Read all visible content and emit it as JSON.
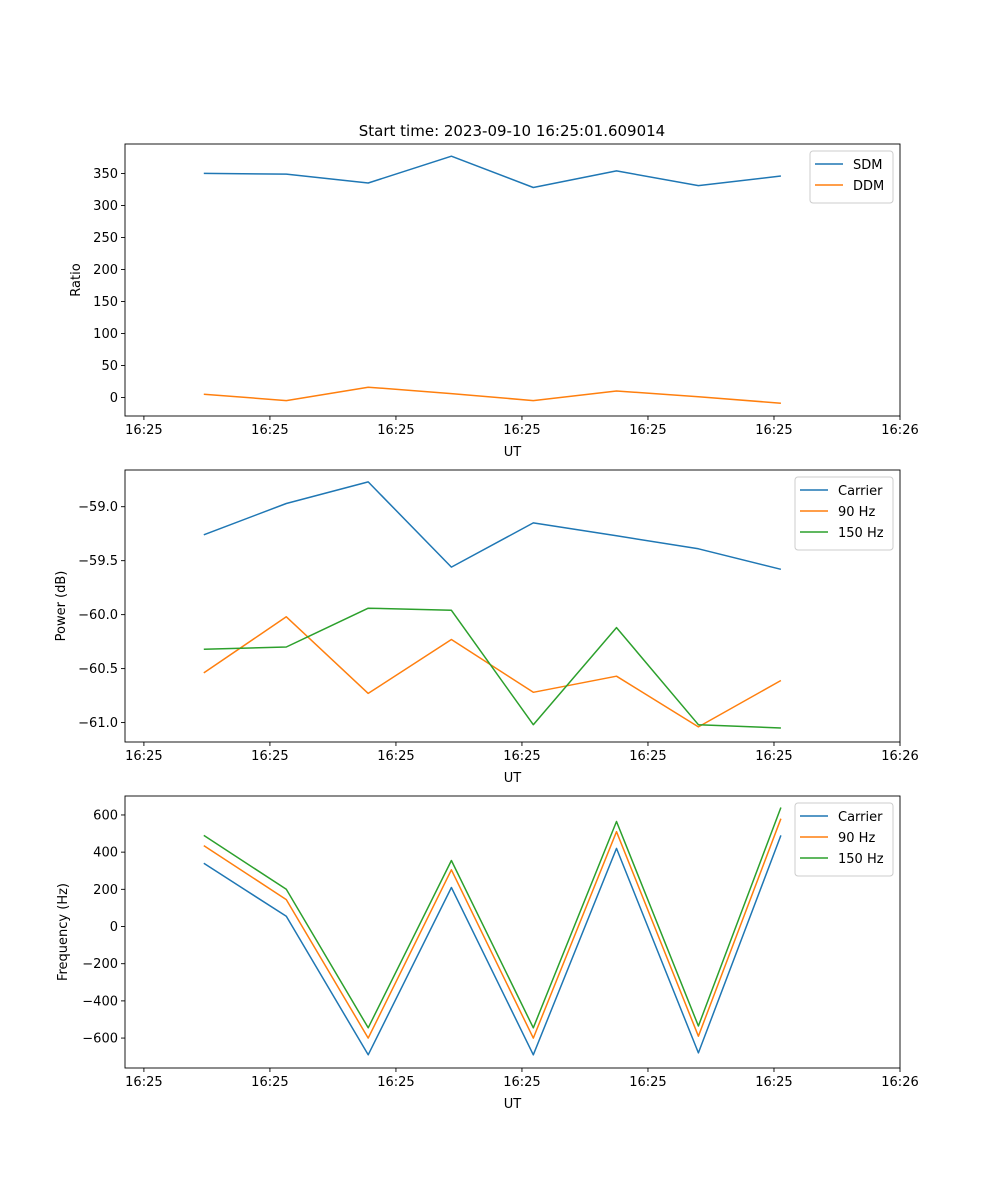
{
  "title": "Start time: 2023-09-10 16:25:01.609014",
  "colors": {
    "blue": "#1f77b4",
    "orange": "#ff7f0e",
    "green": "#2ca02c"
  },
  "chart_data": [
    {
      "type": "line",
      "xlabel": "UT",
      "ylabel": "Ratio",
      "xlim": [
        -0.15,
        6
      ],
      "xticks": [
        0,
        1,
        2,
        3,
        4,
        5,
        6
      ],
      "xtick_labels": [
        "16:25",
        "16:25",
        "16:25",
        "16:25",
        "16:25",
        "16:25",
        "16:26"
      ],
      "ylim": [
        -29,
        396
      ],
      "yticks": [
        0,
        50,
        100,
        150,
        200,
        250,
        300,
        350
      ],
      "ytick_labels": [
        "0",
        "50",
        "100",
        "150",
        "200",
        "250",
        "300",
        "350"
      ],
      "x": [
        0.475,
        1.13,
        1.78,
        2.44,
        3.09,
        3.75,
        4.4,
        5.055
      ],
      "legend": "top-right",
      "series": [
        {
          "name": "SDM",
          "color": "#1f77b4",
          "values": [
            350,
            349,
            335,
            377,
            328,
            354,
            331,
            346
          ]
        },
        {
          "name": "DDM",
          "color": "#ff7f0e",
          "values": [
            5,
            -5,
            16,
            6,
            -5,
            10,
            1,
            -9
          ]
        }
      ]
    },
    {
      "type": "line",
      "xlabel": "UT",
      "ylabel": "Power (dB)",
      "xlim": [
        -0.15,
        6
      ],
      "xticks": [
        0,
        1,
        2,
        3,
        4,
        5,
        6
      ],
      "xtick_labels": [
        "16:25",
        "16:25",
        "16:25",
        "16:25",
        "16:25",
        "16:25",
        "16:26"
      ],
      "ylim": [
        -61.18,
        -58.66
      ],
      "yticks": [
        -61.0,
        -60.5,
        -60.0,
        -59.5,
        -59.0
      ],
      "ytick_labels": [
        "−61.0",
        "−60.5",
        "−60.0",
        "−59.5",
        "−59.0"
      ],
      "x": [
        0.475,
        1.13,
        1.78,
        2.44,
        3.09,
        3.75,
        4.4,
        5.055
      ],
      "legend": "top-right",
      "series": [
        {
          "name": "Carrier",
          "color": "#1f77b4",
          "values": [
            -59.26,
            -58.97,
            -58.77,
            -59.56,
            -59.15,
            -59.27,
            -59.39,
            -59.58
          ]
        },
        {
          "name": "90 Hz",
          "color": "#ff7f0e",
          "values": [
            -60.54,
            -60.02,
            -60.73,
            -60.23,
            -60.72,
            -60.57,
            -61.04,
            -60.61
          ]
        },
        {
          "name": "150 Hz",
          "color": "#2ca02c",
          "values": [
            -60.32,
            -60.3,
            -59.94,
            -59.96,
            -61.02,
            -60.12,
            -61.02,
            -61.05
          ]
        }
      ]
    },
    {
      "type": "line",
      "xlabel": "UT",
      "ylabel": "Frequency (Hz)",
      "xlim": [
        -0.15,
        6
      ],
      "xticks": [
        0,
        1,
        2,
        3,
        4,
        5,
        6
      ],
      "xtick_labels": [
        "16:25",
        "16:25",
        "16:25",
        "16:25",
        "16:25",
        "16:25",
        "16:26"
      ],
      "ylim": [
        -761,
        702
      ],
      "yticks": [
        -600,
        -400,
        -200,
        0,
        200,
        400,
        600
      ],
      "ytick_labels": [
        "−600",
        "−400",
        "−200",
        "0",
        "200",
        "400",
        "600"
      ],
      "x": [
        0.475,
        1.13,
        1.78,
        2.44,
        3.09,
        3.75,
        4.4,
        5.055
      ],
      "legend": "top-right",
      "series": [
        {
          "name": "Carrier",
          "color": "#1f77b4",
          "values": [
            340,
            55,
            -690,
            210,
            -690,
            420,
            -680,
            490
          ]
        },
        {
          "name": "90 Hz",
          "color": "#ff7f0e",
          "values": [
            435,
            145,
            -600,
            305,
            -600,
            510,
            -590,
            580
          ]
        },
        {
          "name": "150 Hz",
          "color": "#2ca02c",
          "values": [
            490,
            200,
            -545,
            355,
            -545,
            565,
            -535,
            640
          ]
        }
      ]
    }
  ]
}
